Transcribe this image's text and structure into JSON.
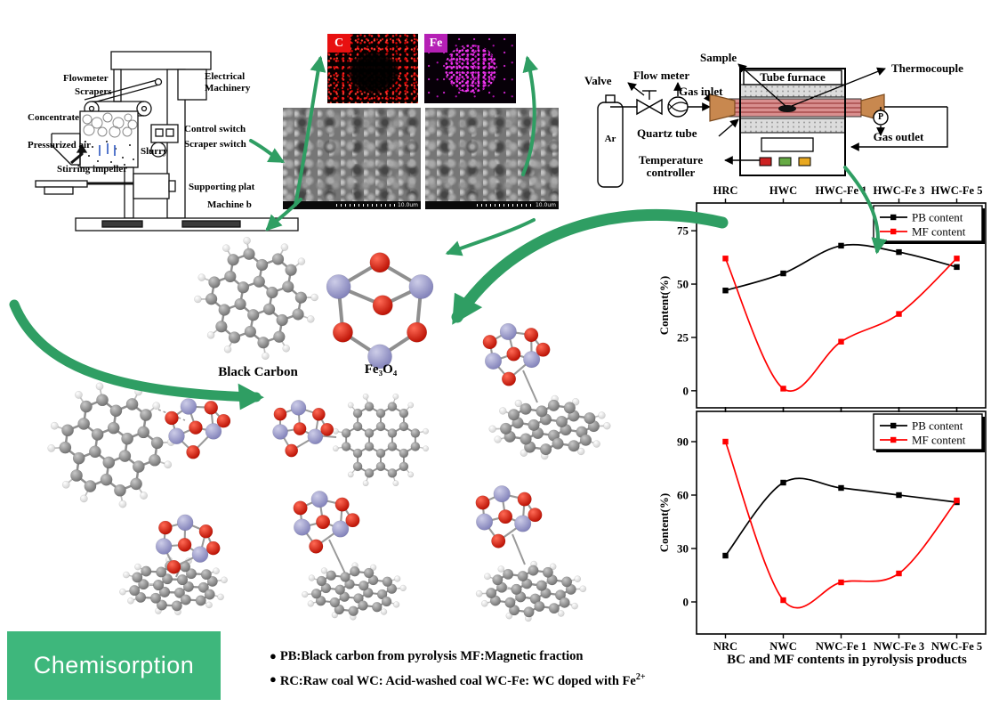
{
  "colors": {
    "accent_green": "#2f9e63",
    "box_green": "#3eb77c"
  },
  "flotation_machine": {
    "labels": {
      "flowmeter": "Flowmeter",
      "scrapers": "Scrapers",
      "concentrate": "Concentrate",
      "pressurized_air": "Pressurized air",
      "stirring_impeller": "Stirring impeller",
      "slurry": "Slurry",
      "electrical_machinery": "Electrical Machinery",
      "control_switch": "Control switch",
      "scraper_switch": "Scraper switch",
      "supporting_plat": "Supporting plat",
      "machine_b": "Machine b"
    }
  },
  "eds": {
    "c_label": "C",
    "fe_label": "Fe"
  },
  "sem": {
    "scale_text": "10.0um"
  },
  "furnace": {
    "labels": {
      "valve": "Valve",
      "flow_meter": "Flow meter",
      "gas_inlet": "Gas inlet",
      "sample": "Sample",
      "tube_furnace": "Tube furnace",
      "thermocouple": "Thermocouple",
      "quartz_tube": "Quartz tube",
      "gas_outlet": "Gas outlet",
      "temperature_controller": "Temperature controller",
      "argon": "Ar",
      "pressure_gauge": "P"
    }
  },
  "molecule_labels": {
    "black_carbon": "Black Carbon",
    "fe3o4": "Fe₃O₄"
  },
  "chemisorption_label": "Chemisorption",
  "notes": {
    "line1": "PB:Black carbon from  pyrolysis  MF:Magnetic fraction",
    "line2": "RC:Raw coal  WC: Acid-washed coal  WC-Fe: WC doped with Fe",
    "line2_sup": "2+"
  },
  "caption": "BC and MF contents in pyrolysis products",
  "chart_data": [
    {
      "type": "line",
      "categories": [
        "HRC",
        "HWC",
        "HWC-Fe 1",
        "HWC-Fe 3",
        "HWC-Fe 5"
      ],
      "series": [
        {
          "name": "PB content",
          "color": "#000000",
          "values": [
            47,
            55,
            68,
            65,
            58
          ]
        },
        {
          "name": "MF content",
          "color": "#ff0000",
          "values": [
            62,
            1,
            23,
            36,
            62
          ]
        }
      ],
      "ylabel": "Content(%)",
      "yticks": [
        0,
        25,
        50,
        75
      ],
      "ylim": [
        -8,
        88
      ],
      "x_labels_position": "top",
      "legend_position": "top-right",
      "grid": false
    },
    {
      "type": "line",
      "categories": [
        "NRC",
        "NWC",
        "NWC-Fe 1",
        "NWC-Fe 3",
        "NWC-Fe 5"
      ],
      "series": [
        {
          "name": "PB content",
          "color": "#000000",
          "values": [
            26,
            67,
            64,
            60,
            56
          ]
        },
        {
          "name": "MF content",
          "color": "#ff0000",
          "values": [
            90,
            1,
            11,
            16,
            57
          ]
        }
      ],
      "ylabel": "Content(%)",
      "yticks": [
        0,
        30,
        60,
        90
      ],
      "ylim": [
        -18,
        107
      ],
      "x_labels_position": "bottom",
      "legend_position": "top-right",
      "grid": false
    }
  ]
}
